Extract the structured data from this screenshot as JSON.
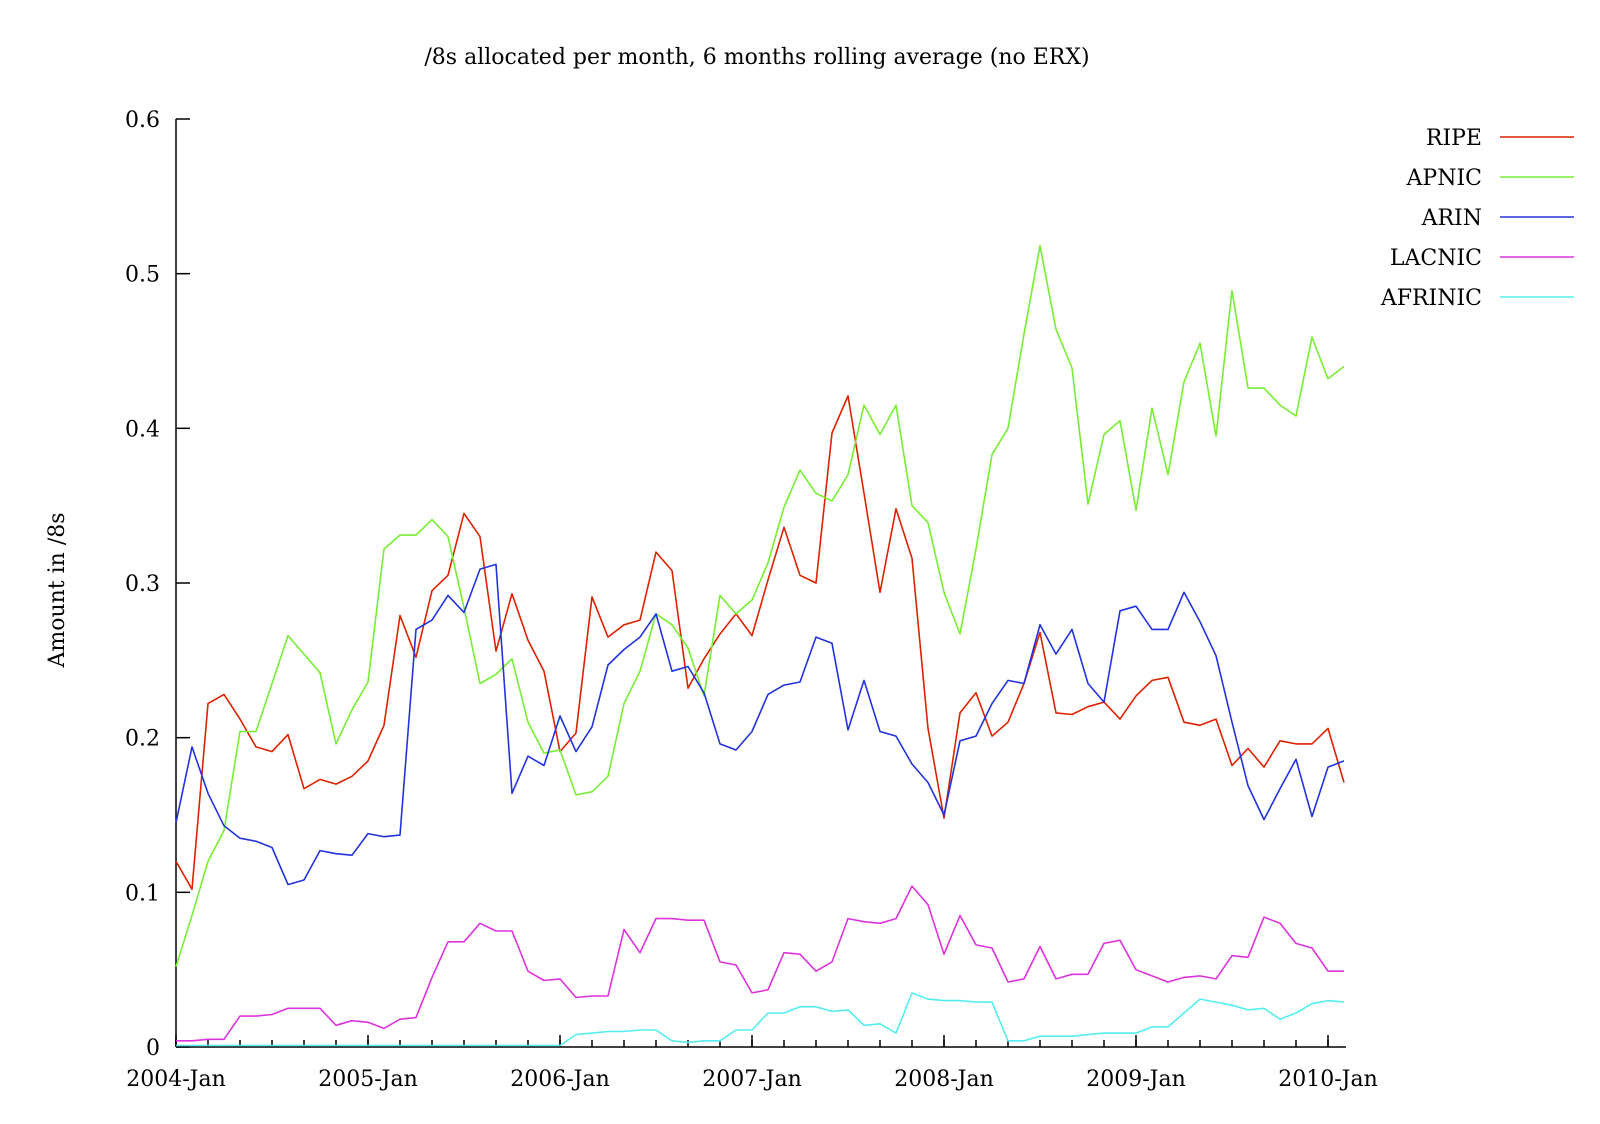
{
  "chart_data": {
    "type": "line",
    "title": "/8s allocated per month, 6 months rolling average (no ERX)",
    "xlabel": "",
    "ylabel": "Amount in /8s",
    "ylim": [
      0,
      0.6
    ],
    "yticks": [
      "0",
      "0.1",
      "0.2",
      "0.3",
      "0.4",
      "0.5",
      "0.6"
    ],
    "xticks": [
      "2004-Jan",
      "2005-Jan",
      "2006-Jan",
      "2007-Jan",
      "2008-Jan",
      "2009-Jan",
      "2010-Jan"
    ],
    "x_start": "2004-Jan",
    "x_step": "month",
    "legend_position": "top-right",
    "grid": false,
    "series": [
      {
        "name": "RIPE",
        "color": "#dd2200",
        "values": [
          0.12,
          0.102,
          0.222,
          0.228,
          0.212,
          0.194,
          0.191,
          0.202,
          0.167,
          0.173,
          0.17,
          0.175,
          0.185,
          0.208,
          0.279,
          0.252,
          0.295,
          0.305,
          0.345,
          0.33,
          0.256,
          0.293,
          0.263,
          0.243,
          0.191,
          0.203,
          0.291,
          0.265,
          0.273,
          0.276,
          0.32,
          0.308,
          0.232,
          0.251,
          0.267,
          0.28,
          0.266,
          0.302,
          0.336,
          0.305,
          0.3,
          0.397,
          0.421,
          0.358,
          0.294,
          0.348,
          0.316,
          0.206,
          0.148,
          0.216,
          0.229,
          0.201,
          0.21,
          0.235,
          0.268,
          0.216,
          0.215,
          0.22,
          0.223,
          0.212,
          0.227,
          0.237,
          0.239,
          0.21,
          0.208,
          0.212,
          0.182,
          0.193,
          0.181,
          0.198,
          0.196,
          0.196,
          0.206,
          0.171
        ]
      },
      {
        "name": "APNIC",
        "color": "#77ee33",
        "values": [
          0.052,
          0.085,
          0.12,
          0.14,
          0.204,
          0.204,
          0.235,
          0.266,
          0.254,
          0.242,
          0.196,
          0.218,
          0.236,
          0.322,
          0.331,
          0.331,
          0.341,
          0.33,
          0.284,
          0.235,
          0.241,
          0.251,
          0.21,
          0.19,
          0.192,
          0.163,
          0.165,
          0.175,
          0.222,
          0.243,
          0.28,
          0.273,
          0.258,
          0.227,
          0.292,
          0.28,
          0.289,
          0.313,
          0.349,
          0.373,
          0.358,
          0.353,
          0.37,
          0.415,
          0.396,
          0.415,
          0.35,
          0.339,
          0.294,
          0.267,
          0.322,
          0.383,
          0.4,
          0.461,
          0.518,
          0.464,
          0.439,
          0.351,
          0.396,
          0.405,
          0.347,
          0.413,
          0.37,
          0.43,
          0.455,
          0.395,
          0.489,
          0.426,
          0.426,
          0.415,
          0.408,
          0.459,
          0.432,
          0.44
        ]
      },
      {
        "name": "ARIN",
        "color": "#2233dd",
        "values": [
          0.145,
          0.194,
          0.164,
          0.143,
          0.135,
          0.133,
          0.129,
          0.105,
          0.108,
          0.127,
          0.125,
          0.124,
          0.138,
          0.136,
          0.137,
          0.27,
          0.276,
          0.292,
          0.281,
          0.309,
          0.312,
          0.164,
          0.188,
          0.182,
          0.214,
          0.191,
          0.207,
          0.247,
          0.257,
          0.265,
          0.28,
          0.243,
          0.246,
          0.229,
          0.196,
          0.192,
          0.204,
          0.228,
          0.234,
          0.236,
          0.265,
          0.261,
          0.205,
          0.237,
          0.204,
          0.201,
          0.183,
          0.171,
          0.15,
          0.198,
          0.201,
          0.222,
          0.237,
          0.235,
          0.273,
          0.254,
          0.27,
          0.235,
          0.223,
          0.282,
          0.285,
          0.27,
          0.27,
          0.294,
          0.275,
          0.253,
          0.21,
          0.169,
          0.147,
          0.167,
          0.186,
          0.149,
          0.181,
          0.185
        ]
      },
      {
        "name": "LACNIC",
        "color": "#dd33dd",
        "values": [
          0.004,
          0.004,
          0.005,
          0.005,
          0.02,
          0.02,
          0.021,
          0.025,
          0.025,
          0.025,
          0.014,
          0.017,
          0.016,
          0.012,
          0.018,
          0.019,
          0.045,
          0.068,
          0.068,
          0.08,
          0.075,
          0.075,
          0.049,
          0.043,
          0.044,
          0.032,
          0.033,
          0.033,
          0.076,
          0.061,
          0.083,
          0.083,
          0.082,
          0.082,
          0.055,
          0.053,
          0.035,
          0.037,
          0.061,
          0.06,
          0.049,
          0.055,
          0.083,
          0.081,
          0.08,
          0.083,
          0.104,
          0.092,
          0.06,
          0.085,
          0.066,
          0.064,
          0.042,
          0.044,
          0.065,
          0.044,
          0.047,
          0.047,
          0.067,
          0.069,
          0.05,
          0.046,
          0.042,
          0.045,
          0.046,
          0.044,
          0.059,
          0.058,
          0.084,
          0.08,
          0.067,
          0.064,
          0.049,
          0.049
        ]
      },
      {
        "name": "AFRINIC",
        "color": "#55eeee",
        "values": [
          0.001,
          0.001,
          0.001,
          0.001,
          0.001,
          0.001,
          0.001,
          0.001,
          0.001,
          0.001,
          0.001,
          0.001,
          0.001,
          0.001,
          0.001,
          0.001,
          0.001,
          0.001,
          0.001,
          0.001,
          0.001,
          0.001,
          0.001,
          0.001,
          0.001,
          0.008,
          0.009,
          0.01,
          0.01,
          0.011,
          0.011,
          0.004,
          0.003,
          0.004,
          0.004,
          0.011,
          0.011,
          0.022,
          0.022,
          0.026,
          0.026,
          0.023,
          0.024,
          0.014,
          0.015,
          0.009,
          0.035,
          0.031,
          0.03,
          0.03,
          0.029,
          0.029,
          0.004,
          0.004,
          0.007,
          0.007,
          0.007,
          0.008,
          0.009,
          0.009,
          0.009,
          0.013,
          0.013,
          0.022,
          0.031,
          0.029,
          0.027,
          0.024,
          0.025,
          0.018,
          0.022,
          0.028,
          0.03,
          0.029
        ]
      }
    ]
  }
}
